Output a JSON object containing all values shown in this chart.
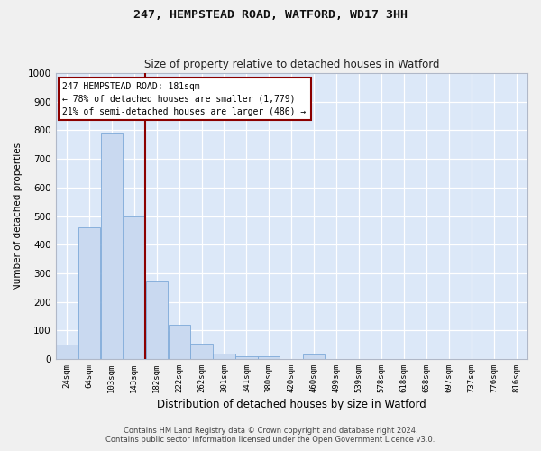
{
  "title": "247, HEMPSTEAD ROAD, WATFORD, WD17 3HH",
  "subtitle": "Size of property relative to detached houses in Watford",
  "xlabel": "Distribution of detached houses by size in Watford",
  "ylabel": "Number of detached properties",
  "categories": [
    "24sqm",
    "64sqm",
    "103sqm",
    "143sqm",
    "182sqm",
    "222sqm",
    "262sqm",
    "301sqm",
    "341sqm",
    "380sqm",
    "420sqm",
    "460sqm",
    "499sqm",
    "539sqm",
    "578sqm",
    "618sqm",
    "658sqm",
    "697sqm",
    "737sqm",
    "776sqm",
    "816sqm"
  ],
  "values": [
    50,
    460,
    790,
    500,
    270,
    120,
    55,
    20,
    10,
    10,
    0,
    15,
    0,
    0,
    0,
    0,
    0,
    0,
    0,
    0,
    0
  ],
  "bar_color": "#c9d9f0",
  "bar_edge_color": "#7da9d8",
  "background_color": "#dce8f8",
  "grid_color": "#ffffff",
  "vline_color": "#8b0000",
  "annotation_line1": "247 HEMPSTEAD ROAD: 181sqm",
  "annotation_line2": "← 78% of detached houses are smaller (1,779)",
  "annotation_line3": "21% of semi-detached houses are larger (486) →",
  "annotation_box_facecolor": "#ffffff",
  "annotation_box_edgecolor": "#8b0000",
  "ylim": [
    0,
    1000
  ],
  "yticks": [
    0,
    100,
    200,
    300,
    400,
    500,
    600,
    700,
    800,
    900,
    1000
  ],
  "footer_line1": "Contains HM Land Registry data © Crown copyright and database right 2024.",
  "footer_line2": "Contains public sector information licensed under the Open Government Licence v3.0.",
  "fig_width": 6.0,
  "fig_height": 5.0,
  "dpi": 100
}
